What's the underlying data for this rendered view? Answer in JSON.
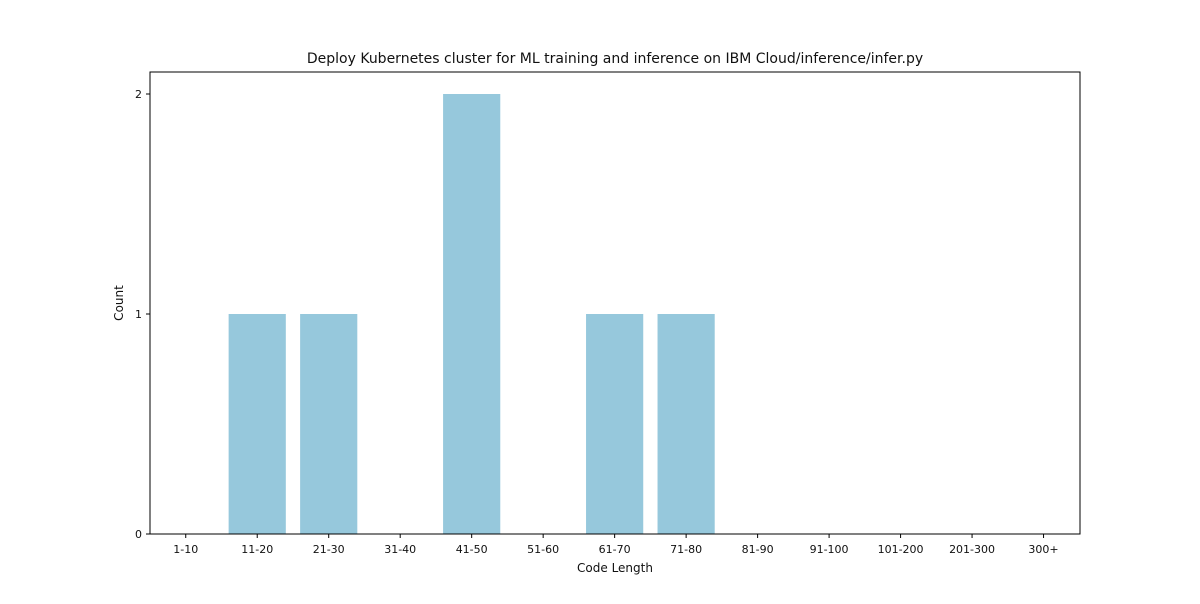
{
  "chart_data": {
    "type": "bar",
    "title": "Deploy Kubernetes cluster for ML training and inference on IBM Cloud/inference/infer.py",
    "xlabel": "Code Length",
    "ylabel": "Count",
    "categories": [
      "1-10",
      "11-20",
      "21-30",
      "31-40",
      "41-50",
      "51-60",
      "61-70",
      "71-80",
      "81-90",
      "91-100",
      "101-200",
      "201-300",
      "300+"
    ],
    "values": [
      0,
      1,
      1,
      0,
      2,
      0,
      1,
      1,
      0,
      0,
      0,
      0,
      0
    ],
    "ylim": [
      0,
      2.1
    ],
    "yticks": [
      0,
      1,
      2
    ],
    "grid": false,
    "legend": "none",
    "bar_color": "#96c8dc"
  }
}
